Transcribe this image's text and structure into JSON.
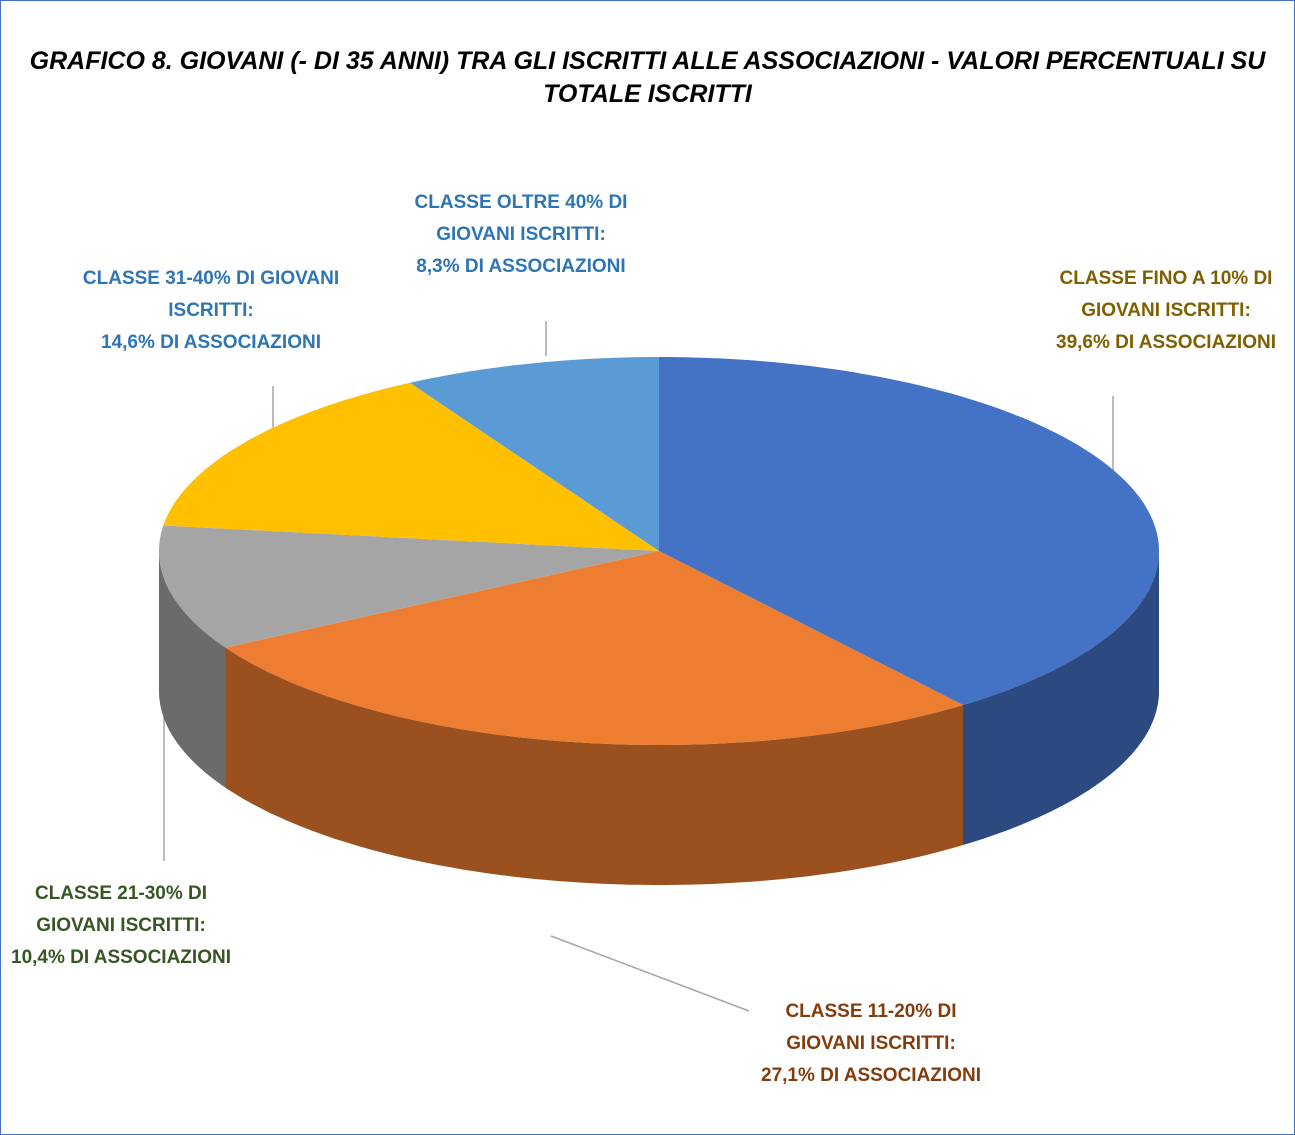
{
  "chart_data": {
    "type": "pie",
    "title": "GRAFICO 8. GIOVANI (- DI 35 ANNI) TRA GLI ISCRITTI ALLE ASSOCIAZIONI - VALORI PERCENTUALI SU TOTALE ISCRITTI",
    "categories": [
      "CLASSE FINO A 10% DI GIOVANI ISCRITTI:",
      "CLASSE 11-20% DI GIOVANI ISCRITTI:",
      "CLASSE 21-30% DI GIOVANI ISCRITTI:",
      "CLASSE 31-40% DI GIOVANI ISCRITTI:",
      "CLASSE OLTRE 40% DI GIOVANI ISCRITTI:"
    ],
    "values": [
      39.6,
      27.1,
      10.4,
      14.6,
      8.3
    ],
    "value_labels": [
      "39,6% DI ASSOCIAZIONI",
      "27,1% DI ASSOCIAZIONI",
      "10,4% DI ASSOCIAZIONI",
      "14,6% DI ASSOCIAZIONI",
      "8,3% DI ASSOCIAZIONI"
    ],
    "colors": [
      "#4472c4",
      "#ed7d31",
      "#a5a5a5",
      "#ffc000",
      "#5b9bd5"
    ],
    "label_colors": [
      "#7f6000",
      "#843c0c",
      "#375623",
      "#2e75b6",
      "#2e75b6"
    ]
  }
}
